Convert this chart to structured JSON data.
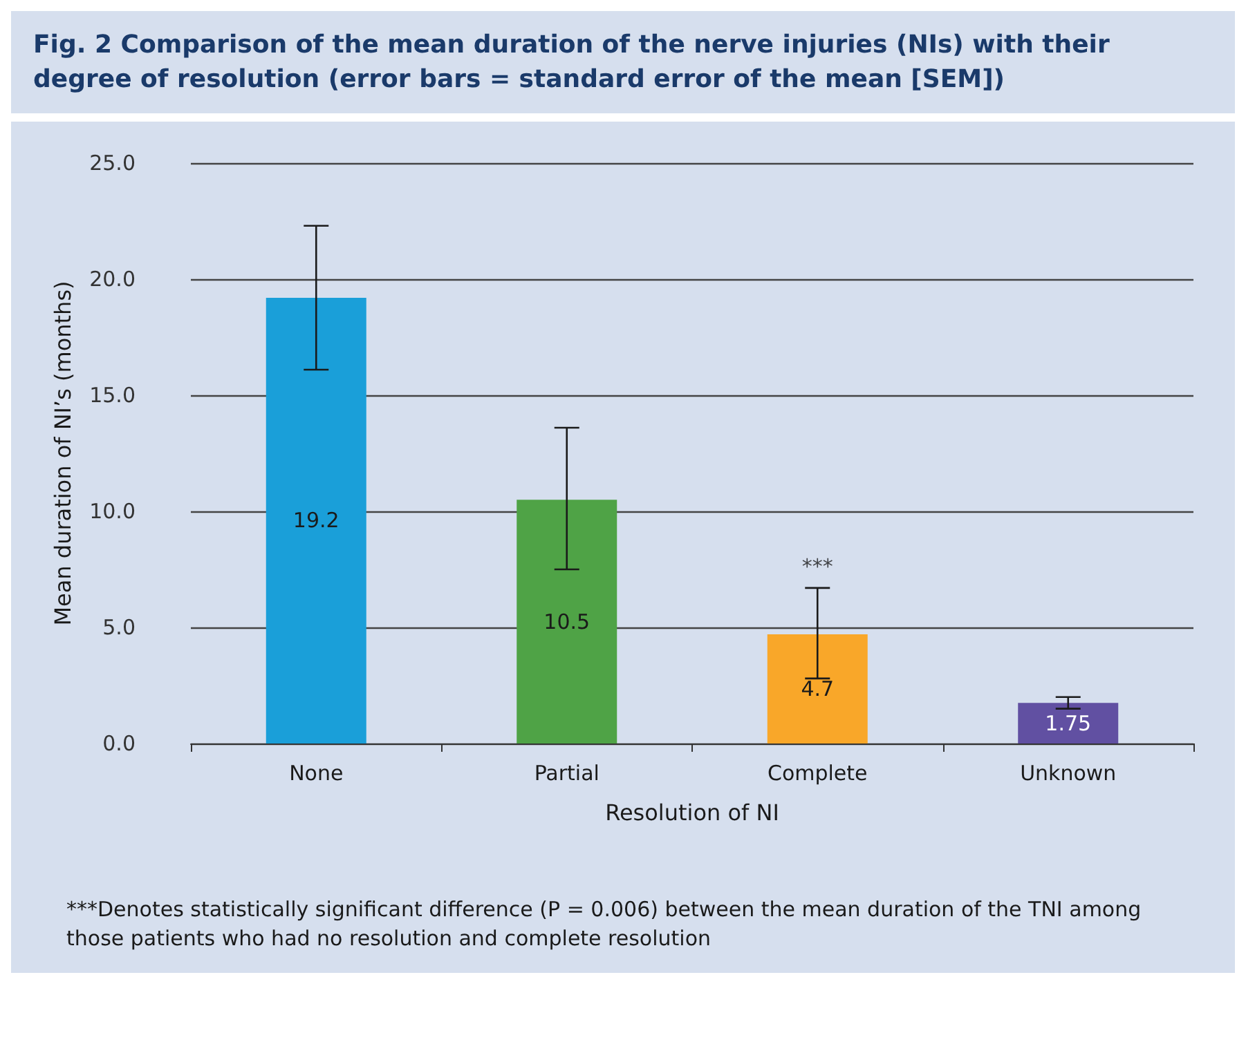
{
  "chart_data": {
    "type": "bar",
    "title": "Fig. 2  Comparison of the mean duration of the nerve injuries (NIs) with their degree of resolution (error bars = standard error of the mean [SEM])",
    "xlabel": "Resolution of NI",
    "ylabel": "Mean duration of NI’s (months)",
    "categories": [
      "None",
      "Partial",
      "Complete",
      "Unknown"
    ],
    "values": [
      19.2,
      10.5,
      4.7,
      1.75
    ],
    "colors": [
      "#1a9fd9",
      "#4fa346",
      "#f9a729",
      "#6150a2"
    ],
    "errors": [
      [
        16.1,
        22.3
      ],
      [
        7.5,
        13.6
      ],
      [
        2.8,
        6.7
      ],
      [
        1.5,
        2.0
      ]
    ],
    "data_labels": true,
    "ylim": [
      0,
      25
    ],
    "yticks": [
      {
        "value": 0,
        "label": "0.0"
      },
      {
        "value": 5,
        "label": "5.0"
      },
      {
        "value": 10,
        "label": "10.0"
      },
      {
        "value": 15,
        "label": "15.0"
      },
      {
        "value": 20,
        "label": "20.0"
      },
      {
        "value": 25,
        "label": "25.0"
      }
    ],
    "grid": "y",
    "annotations": [
      {
        "text": "***",
        "x": "Complete",
        "y": 6.7
      },
      "***Denotes statistically significant difference (P = 0.006) between the mean duration of the TNI among those patients who had no resolution and complete resolution"
    ]
  }
}
